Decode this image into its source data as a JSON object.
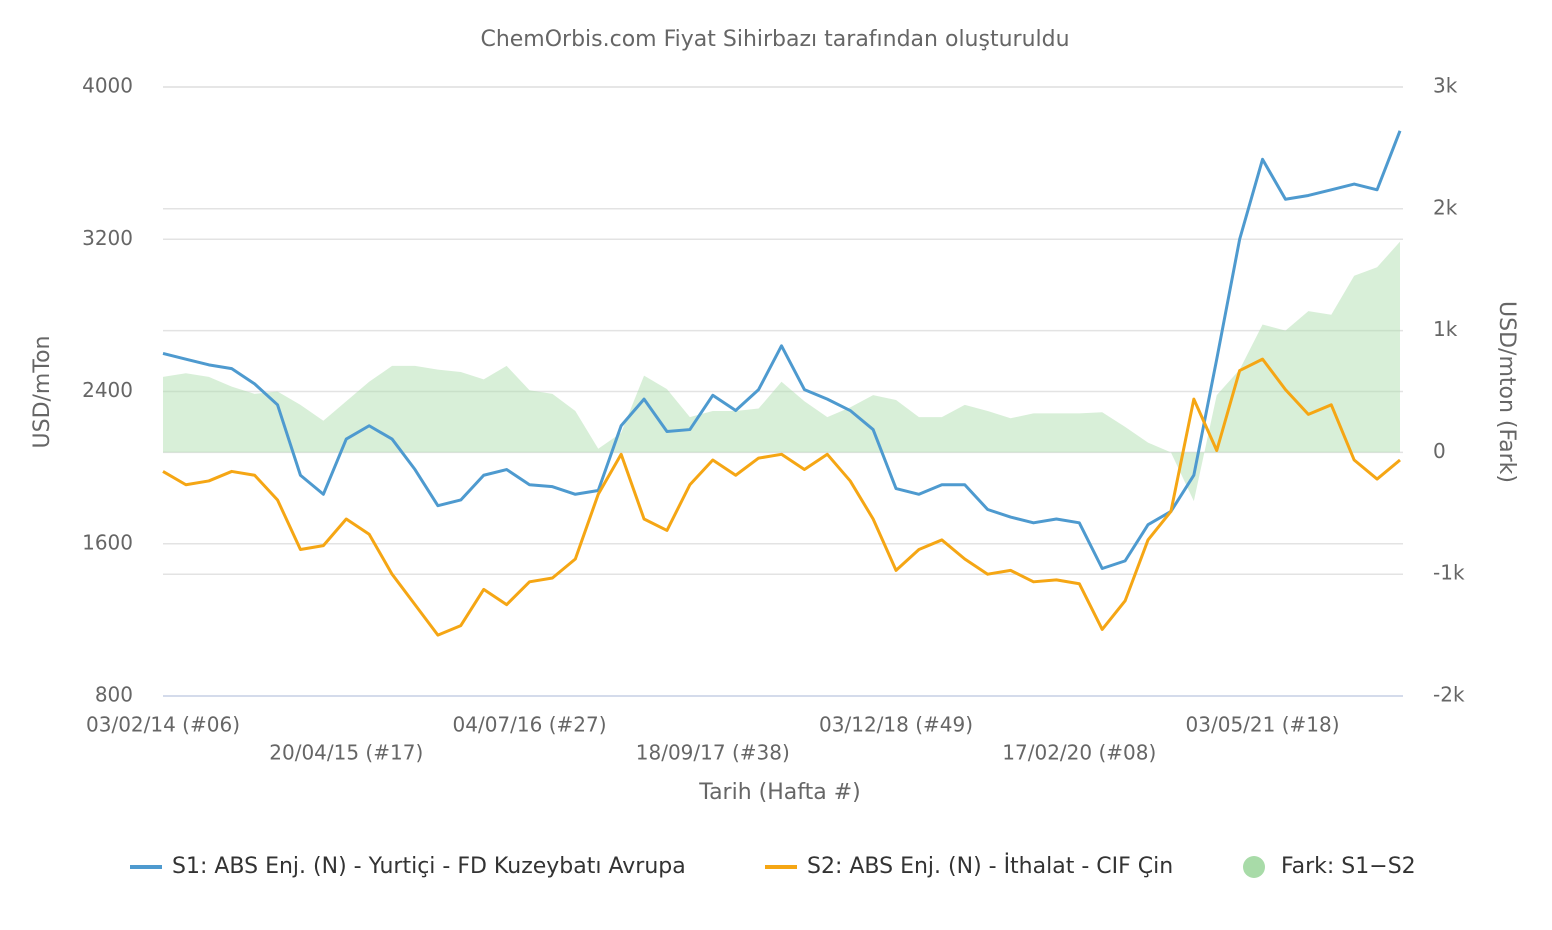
{
  "chart_data": {
    "type": "line",
    "title": "ChemOrbis.com Fiyat Sihirbazı tarafından oluşturuldu",
    "x_label": "Tarih (Hafta #)",
    "y_label": "USD/mTon",
    "y2_label": "USD/mton (Fark)",
    "categories": [
      "03/02/14 (#06)",
      null,
      null,
      null,
      null,
      null,
      null,
      null,
      "20/04/15 (#17)",
      null,
      null,
      null,
      null,
      null,
      null,
      null,
      "04/07/16 (#27)",
      null,
      null,
      null,
      null,
      null,
      null,
      null,
      "18/09/17 (#38)",
      null,
      null,
      null,
      null,
      null,
      null,
      null,
      "03/12/18 (#49)",
      null,
      null,
      null,
      null,
      null,
      null,
      null,
      "17/02/20 (#08)",
      null,
      null,
      null,
      null,
      null,
      null,
      null,
      "03/05/21 (#18)",
      null,
      null,
      null,
      null,
      null,
      null
    ],
    "ylim": [
      800,
      4000
    ],
    "yticks": [
      800,
      1600,
      2400,
      3200,
      4000
    ],
    "y2lim": [
      -2000,
      3000
    ],
    "y2ticks": [
      {
        "value": -2000,
        "label": "-2k"
      },
      {
        "value": -1000,
        "label": "-1k"
      },
      0,
      {
        "value": 1000,
        "label": "1k"
      },
      {
        "value": 2000,
        "label": "2k"
      },
      {
        "value": 3000,
        "label": "3k"
      }
    ],
    "grid": true,
    "legend": "bottom",
    "series": [
      {
        "name": "S1: ABS Enj. (N) - Yurtiçi - FD Kuzeybatı Avrupa",
        "color": "#4e9acf",
        "values": [
          2600,
          2570,
          2540,
          2520,
          2440,
          2330,
          1960,
          1860,
          2150,
          2220,
          2150,
          1990,
          1800,
          1830,
          1960,
          1990,
          1910,
          1900,
          1860,
          1880,
          2220,
          2360,
          2190,
          2200,
          2380,
          2300,
          2410,
          2640,
          2410,
          2360,
          2300,
          2200,
          1890,
          1860,
          1910,
          1910,
          1780,
          1740,
          1710,
          1730,
          1710,
          1470,
          1510,
          1700,
          1770,
          1960,
          2570,
          3200,
          3620,
          3410,
          3430,
          3460,
          3490,
          3460,
          3770
        ]
      },
      {
        "name": "S2: ABS Enj. (N) - İthalat - CIF Çin",
        "color": "#f5a614",
        "values": [
          1980,
          1910,
          1930,
          1980,
          1960,
          1830,
          1570,
          1590,
          1730,
          1650,
          1440,
          1280,
          1120,
          1170,
          1360,
          1280,
          1400,
          1420,
          1520,
          1860,
          2070,
          1730,
          1670,
          1910,
          2040,
          1960,
          2050,
          2070,
          1990,
          2070,
          1930,
          1730,
          1460,
          1570,
          1620,
          1520,
          1440,
          1460,
          1400,
          1410,
          1390,
          1150,
          1300,
          1620,
          1770,
          2360,
          2090,
          2510,
          2570,
          2410,
          2280,
          2330,
          2040,
          1940,
          2040
        ]
      },
      {
        "name": "Fark: S1−S2",
        "color": "#a8dba8",
        "axis": "y2",
        "values": [
          620,
          650,
          620,
          540,
          480,
          500,
          390,
          260,
          420,
          580,
          710,
          710,
          680,
          660,
          600,
          710,
          510,
          480,
          340,
          30,
          160,
          630,
          520,
          290,
          340,
          340,
          360,
          580,
          420,
          290,
          370,
          470,
          430,
          290,
          290,
          390,
          340,
          280,
          320,
          320,
          320,
          330,
          210,
          80,
          0,
          -400,
          470,
          680,
          1050,
          1000,
          1160,
          1130,
          1450,
          1520,
          1730
        ]
      }
    ]
  }
}
